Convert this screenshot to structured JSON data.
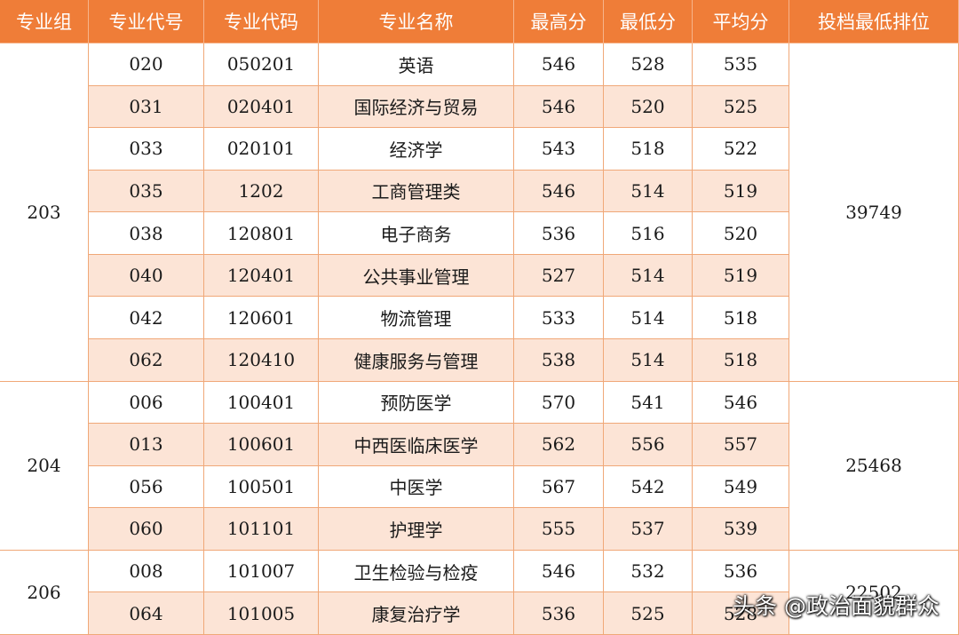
{
  "headers": [
    "专业组",
    "专业代号",
    "专业代码",
    "专业名称",
    "最高分",
    "最低分",
    "平均分",
    "投档最低排位"
  ],
  "groups": [
    {
      "id": "203",
      "rank": "39749"
    },
    {
      "id": "204",
      "rank": "25468"
    },
    {
      "id": "206",
      "rank": "22502"
    }
  ],
  "rows": [
    {
      "code": "020",
      "major_code": "050201",
      "name": "英语",
      "max": "546",
      "min": "528",
      "avg": "535"
    },
    {
      "code": "031",
      "major_code": "020401",
      "name": "国际经济与贸易",
      "max": "546",
      "min": "520",
      "avg": "525"
    },
    {
      "code": "033",
      "major_code": "020101",
      "name": "经济学",
      "max": "543",
      "min": "518",
      "avg": "522"
    },
    {
      "code": "035",
      "major_code": "1202",
      "name": "工商管理类",
      "max": "546",
      "min": "514",
      "avg": "519"
    },
    {
      "code": "038",
      "major_code": "120801",
      "name": "电子商务",
      "max": "536",
      "min": "516",
      "avg": "520"
    },
    {
      "code": "040",
      "major_code": "120401",
      "name": "公共事业管理",
      "max": "527",
      "min": "514",
      "avg": "519"
    },
    {
      "code": "042",
      "major_code": "120601",
      "name": "物流管理",
      "max": "533",
      "min": "514",
      "avg": "518"
    },
    {
      "code": "062",
      "major_code": "120410",
      "name": "健康服务与管理",
      "max": "538",
      "min": "514",
      "avg": "518"
    },
    {
      "code": "006",
      "major_code": "100401",
      "name": "预防医学",
      "max": "570",
      "min": "541",
      "avg": "546"
    },
    {
      "code": "013",
      "major_code": "100601",
      "name": "中西医临床医学",
      "max": "562",
      "min": "556",
      "avg": "557"
    },
    {
      "code": "056",
      "major_code": "100501",
      "name": "中医学",
      "max": "567",
      "min": "542",
      "avg": "549"
    },
    {
      "code": "060",
      "major_code": "101101",
      "name": "护理学",
      "max": "555",
      "min": "537",
      "avg": "539"
    },
    {
      "code": "008",
      "major_code": "101007",
      "name": "卫生检验与检疫",
      "max": "546",
      "min": "532",
      "avg": "536"
    },
    {
      "code": "064",
      "major_code": "101005",
      "name": "康复治疗学",
      "max": "536",
      "min": "525",
      "avg": "528"
    }
  ],
  "watermark": "头条 @政治面貌群众"
}
